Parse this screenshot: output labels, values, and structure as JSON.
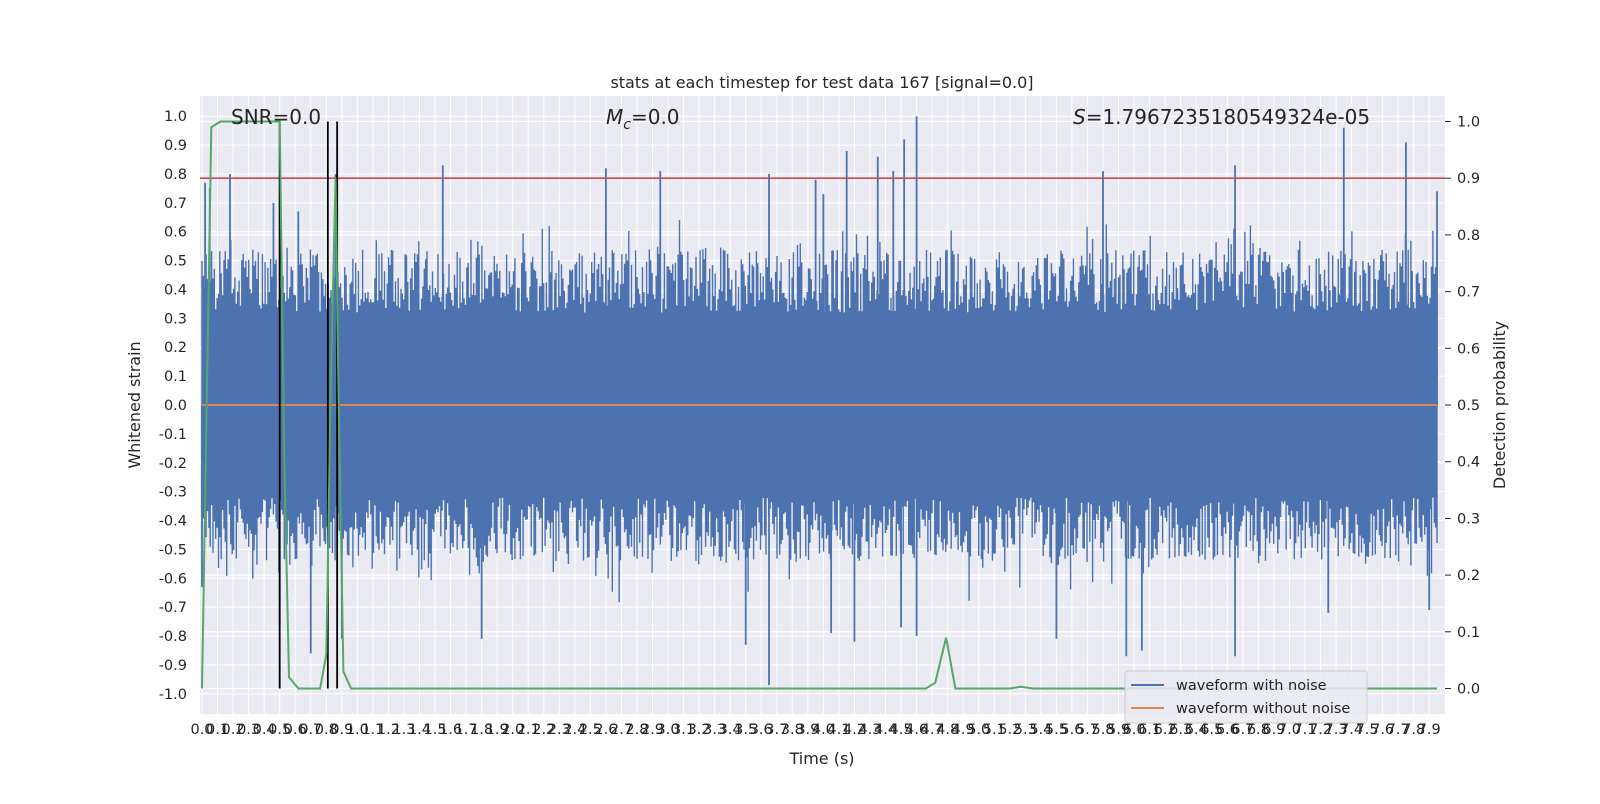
{
  "chart_data": {
    "type": "line",
    "title": "stats at each timestep for test data 167 [signal=0.0]",
    "xlabel": "Time (s)",
    "ylabel_left": "Whitened strain",
    "ylabel_right": "Detection probability",
    "xlim": [
      0.0,
      7.95
    ],
    "ylim_left": [
      -1.07,
      1.07
    ],
    "ylim_right": [
      -0.045,
      1.045
    ],
    "x_ticks": [
      "0.0",
      "0.1",
      "0.2",
      "0.3",
      "0.4",
      "0.5",
      "0.6",
      "0.7",
      "0.8",
      "0.9",
      "1.0",
      "1.1",
      "1.2",
      "1.3",
      "1.4",
      "1.5",
      "1.6",
      "1.7",
      "1.8",
      "1.9",
      "2.0",
      "2.1",
      "2.2",
      "2.3",
      "2.4",
      "2.5",
      "2.6",
      "2.7",
      "2.8",
      "2.9",
      "3.0",
      "3.1",
      "3.2",
      "3.3",
      "3.4",
      "3.5",
      "3.6",
      "3.7",
      "3.8",
      "3.9",
      "4.0",
      "4.1",
      "4.2",
      "4.3",
      "4.4",
      "4.5",
      "4.6",
      "4.7",
      "4.8",
      "4.9",
      "5.0",
      "5.1",
      "5.2",
      "5.3",
      "5.4",
      "5.5",
      "5.6",
      "5.7",
      "5.8",
      "5.9",
      "6.0",
      "6.1",
      "6.2",
      "6.3",
      "6.4",
      "6.5",
      "6.6",
      "6.7",
      "6.8",
      "6.9",
      "7.0",
      "7.1",
      "7.2",
      "7.3",
      "7.4",
      "7.5",
      "7.6",
      "7.7",
      "7.8",
      "7.9"
    ],
    "y_ticks_left": [
      "-1.0",
      "-0.9",
      "-0.8",
      "-0.7",
      "-0.6",
      "-0.5",
      "-0.4",
      "-0.3",
      "-0.2",
      "-0.1",
      "0.0",
      "0.1",
      "0.2",
      "0.3",
      "0.4",
      "0.5",
      "0.6",
      "0.7",
      "0.8",
      "0.9",
      "1.0"
    ],
    "y_ticks_right": [
      "0.0",
      "0.1",
      "0.2",
      "0.3",
      "0.4",
      "0.5",
      "0.6",
      "0.7",
      "0.8",
      "0.9",
      "1.0"
    ],
    "annotations": {
      "snr": "SNR=0.0",
      "mc_symbol": "M",
      "mc_sub": "c",
      "mc_value": "=0.0",
      "s_symbol": "S",
      "s_value": "=1.7967235180549324e-05"
    },
    "threshold": {
      "axis": "right",
      "value": 0.9,
      "color": "#c44e52"
    },
    "vertical_markers_x": [
      0.5,
      0.81,
      0.87
    ],
    "series": [
      {
        "name": "waveform with noise",
        "axis": "left",
        "color": "#4c72b0",
        "description_of_envelope": "dense noise filling approximately -0.45 to 0.45 with spikes",
        "spikes": [
          [
            0.02,
            0.77
          ],
          [
            0.05,
            0.75
          ],
          [
            0.18,
            0.8
          ],
          [
            0.46,
            0.7
          ],
          [
            0.5,
            0.79
          ],
          [
            0.62,
            0.67
          ],
          [
            0.86,
            0.8
          ],
          [
            1.55,
            0.83
          ],
          [
            2.6,
            0.82
          ],
          [
            2.95,
            0.81
          ],
          [
            3.65,
            0.8
          ],
          [
            3.95,
            0.78
          ],
          [
            4.0,
            0.73
          ],
          [
            4.15,
            0.88
          ],
          [
            4.35,
            0.86
          ],
          [
            4.45,
            0.81
          ],
          [
            4.52,
            0.92
          ],
          [
            4.6,
            1.0
          ],
          [
            5.8,
            0.81
          ],
          [
            6.65,
            0.83
          ],
          [
            7.35,
            0.96
          ],
          [
            7.75,
            0.91
          ],
          [
            7.95,
            0.74
          ],
          [
            0.0,
            -0.63
          ],
          [
            0.5,
            -0.76
          ],
          [
            0.7,
            -0.86
          ],
          [
            0.9,
            -0.81
          ],
          [
            1.8,
            -0.81
          ],
          [
            3.5,
            -0.83
          ],
          [
            3.65,
            -0.97
          ],
          [
            4.05,
            -0.79
          ],
          [
            4.2,
            -0.82
          ],
          [
            4.5,
            -0.77
          ],
          [
            4.6,
            -0.8
          ],
          [
            5.5,
            -0.81
          ],
          [
            5.95,
            -0.87
          ],
          [
            6.05,
            -0.85
          ],
          [
            6.65,
            -0.87
          ],
          [
            7.25,
            -0.72
          ],
          [
            7.9,
            -0.71
          ]
        ]
      },
      {
        "name": "waveform without noise",
        "axis": "left",
        "color": "#dd8452",
        "values_x": [
          0.0,
          7.95
        ],
        "values_y": [
          0.0,
          0.0
        ]
      },
      {
        "axis": "right",
        "color": "#55a868",
        "x": [
          0.0,
          0.06,
          0.12,
          0.2,
          0.3,
          0.4,
          0.48,
          0.5,
          0.53,
          0.56,
          0.62,
          0.7,
          0.76,
          0.8,
          0.83,
          0.86,
          0.88,
          0.91,
          0.96,
          1.05,
          2.0,
          3.0,
          4.0,
          4.66,
          4.72,
          4.79,
          4.85,
          5.0,
          5.2,
          5.27,
          5.35,
          6.0,
          7.0,
          7.95
        ],
        "y": [
          0.0,
          0.99,
          1.0,
          1.0,
          1.0,
          1.0,
          1.0,
          1.0,
          0.4,
          0.02,
          0.0,
          0.0,
          0.0,
          0.06,
          0.55,
          0.9,
          0.5,
          0.03,
          0.0,
          0.0,
          0.0,
          0.0,
          0.0,
          0.0,
          0.01,
          0.09,
          0.0,
          0.0,
          0.0,
          0.003,
          0.0,
          0.0,
          0.0,
          0.0
        ]
      }
    ],
    "legend": {
      "placement": "lower right",
      "entries": [
        {
          "label": "waveform with noise",
          "color": "#4c72b0"
        },
        {
          "label": "waveform without noise",
          "color": "#dd8452"
        }
      ]
    },
    "colors": {
      "plot_background": "#eaeaf2",
      "grid": "#ffffff",
      "text": "#262626"
    },
    "grid": true
  }
}
